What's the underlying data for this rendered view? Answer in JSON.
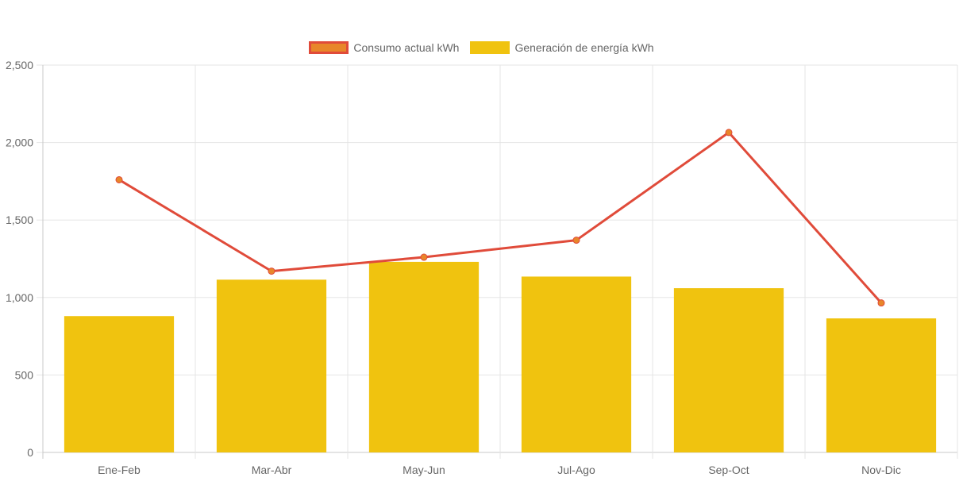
{
  "chart_data": {
    "type": "bar",
    "categories": [
      "Ene-Feb",
      "Mar-Abr",
      "May-Jun",
      "Jul-Ago",
      "Sep-Oct",
      "Nov-Dic"
    ],
    "series": [
      {
        "name": "Consumo actual kWh",
        "type": "line",
        "values": [
          1760,
          1170,
          1260,
          1370,
          2065,
          965
        ],
        "color": "#e04b3a",
        "fill": "#e8862a"
      },
      {
        "name": "Generación de energía kWh",
        "type": "bar",
        "values": [
          880,
          1115,
          1230,
          1135,
          1060,
          865
        ],
        "color": "#f0c30f"
      }
    ],
    "ylim": [
      0,
      2500
    ],
    "yticks": [
      0,
      500,
      1000,
      1500,
      2000,
      2500
    ],
    "ytick_labels": [
      "0",
      "500",
      "1,000",
      "1,500",
      "2,000",
      "2,500"
    ],
    "grid": true,
    "legend_position": "top-center"
  }
}
